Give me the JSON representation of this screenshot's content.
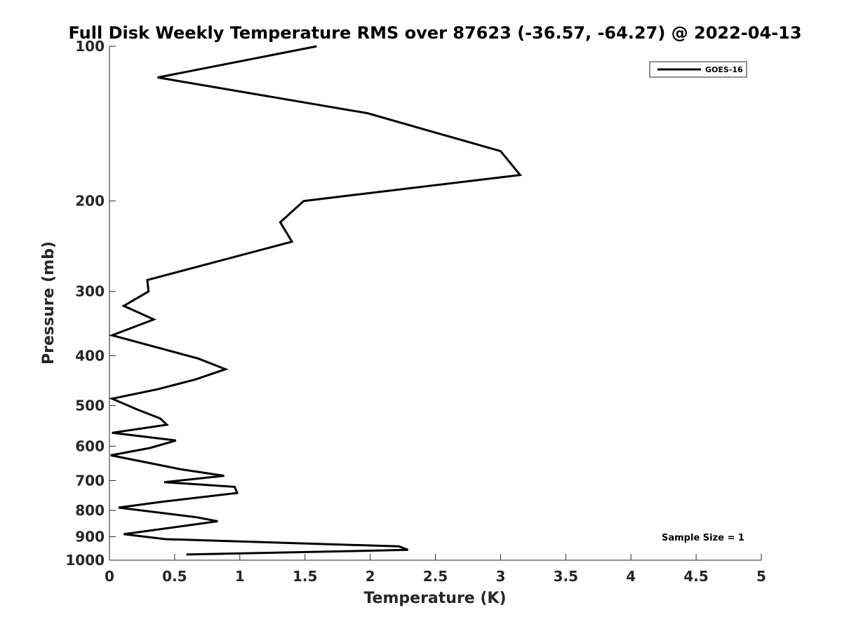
{
  "chart_data": {
    "type": "line",
    "title": "Full Disk Weekly Temperature RMS over 87623 (-36.57, -64.27) @ 2022-04-13",
    "xlabel": "Temperature (K)",
    "ylabel": "Pressure (mb)",
    "xlim": [
      0,
      5
    ],
    "ylim": [
      100,
      1000
    ],
    "y_scale": "log",
    "y_reversed": true,
    "x_ticks": [
      "0",
      "0.5",
      "1",
      "1.5",
      "2",
      "2.5",
      "3",
      "3.5",
      "4",
      "4.5",
      "5"
    ],
    "y_ticks": [
      "100",
      "200",
      "300",
      "400",
      "500",
      "600",
      "700",
      "800",
      "900",
      "1000"
    ],
    "grid": false,
    "legend_position": "top-right",
    "annotation": "Sample Size = 1",
    "series": [
      {
        "name": "GOES-16",
        "color": "#000000",
        "points": [
          {
            "x": 1.59,
            "y": 100
          },
          {
            "x": 0.37,
            "y": 115
          },
          {
            "x": 1.98,
            "y": 135
          },
          {
            "x": 3.0,
            "y": 160
          },
          {
            "x": 3.15,
            "y": 178
          },
          {
            "x": 1.49,
            "y": 200
          },
          {
            "x": 1.31,
            "y": 220
          },
          {
            "x": 1.4,
            "y": 240
          },
          {
            "x": 0.29,
            "y": 285
          },
          {
            "x": 0.3,
            "y": 300
          },
          {
            "x": 0.11,
            "y": 320
          },
          {
            "x": 0.34,
            "y": 340
          },
          {
            "x": 0.02,
            "y": 365
          },
          {
            "x": 0.68,
            "y": 405
          },
          {
            "x": 0.89,
            "y": 425
          },
          {
            "x": 0.66,
            "y": 445
          },
          {
            "x": 0.37,
            "y": 465
          },
          {
            "x": 0.02,
            "y": 485
          },
          {
            "x": 0.22,
            "y": 510
          },
          {
            "x": 0.39,
            "y": 530
          },
          {
            "x": 0.44,
            "y": 545
          },
          {
            "x": 0.02,
            "y": 565
          },
          {
            "x": 0.51,
            "y": 585
          },
          {
            "x": 0.31,
            "y": 605
          },
          {
            "x": 0.01,
            "y": 625
          },
          {
            "x": 0.54,
            "y": 665
          },
          {
            "x": 0.88,
            "y": 685
          },
          {
            "x": 0.42,
            "y": 705
          },
          {
            "x": 0.96,
            "y": 720
          },
          {
            "x": 0.98,
            "y": 740
          },
          {
            "x": 0.4,
            "y": 770
          },
          {
            "x": 0.07,
            "y": 790
          },
          {
            "x": 0.67,
            "y": 825
          },
          {
            "x": 0.83,
            "y": 840
          },
          {
            "x": 0.11,
            "y": 890
          },
          {
            "x": 0.43,
            "y": 910
          },
          {
            "x": 2.22,
            "y": 940
          },
          {
            "x": 2.29,
            "y": 955
          },
          {
            "x": 0.59,
            "y": 975
          }
        ]
      }
    ]
  }
}
